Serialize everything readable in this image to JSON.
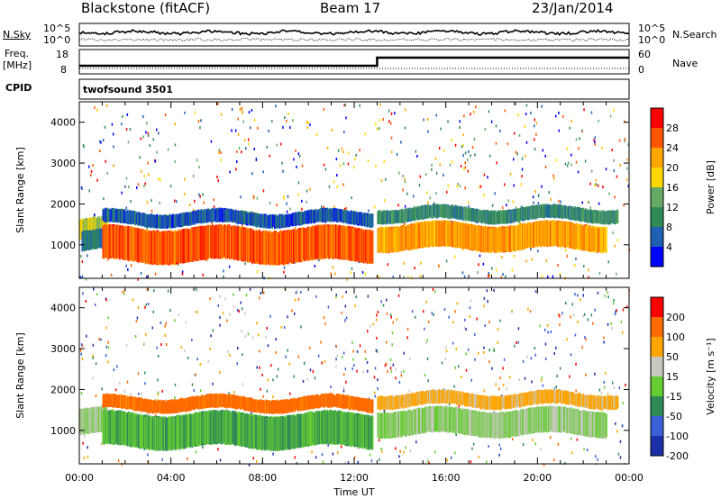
{
  "header": {
    "station": "Blackstone (fitACF)",
    "beam": "Beam 17",
    "date": "23/Jan/2014"
  },
  "noise_panel": {
    "left_label": "N.Sky",
    "right_label": "N.Search",
    "left_ticks": [
      "10^5",
      "10^0"
    ],
    "right_ticks": [
      "10^5",
      "10^0"
    ]
  },
  "freq_panel": {
    "left_label_top": "Freq.",
    "left_label_bottom": "[MHz]",
    "right_label": "Nave",
    "left_ticks": [
      "18",
      "8"
    ],
    "right_ticks": [
      "60",
      "0"
    ],
    "freq_step_time_hour": 13.0
  },
  "cpid": {
    "label": "CPID",
    "program": "twofsound 3501"
  },
  "colors": {
    "power_scale": [
      "#0000ff",
      "#1f5fb4",
      "#2e8b57",
      "#66aa66",
      "#ffd700",
      "#ffa500",
      "#ff5500",
      "#ff0000"
    ],
    "velocity_scale": [
      "#1a2fa8",
      "#3b5fd6",
      "#2e8b57",
      "#66cc33",
      "#c8c8c0",
      "#ffa500",
      "#ff6a00",
      "#ff0000"
    ]
  },
  "chart_data": [
    {
      "type": "heatmap",
      "name": "power",
      "ylabel": "Slant Range [km]",
      "ylim": [
        180,
        4500
      ],
      "yticks": [
        "4000",
        "3000",
        "2000",
        "1000"
      ],
      "xlim_hours": [
        0,
        24
      ],
      "colorbar": {
        "label": "Power [dB]",
        "ticks": [
          "28",
          "24",
          "20",
          "16",
          "12",
          "8",
          "4"
        ],
        "range": [
          0,
          32
        ]
      },
      "bands": [
        {
          "t0": 0.0,
          "t1": 1.2,
          "r0": 1150,
          "r1": 1600,
          "level": 16
        },
        {
          "t0": 0.1,
          "t1": 1.1,
          "r0": 850,
          "r1": 1300,
          "level": 8
        },
        {
          "t0": 1.0,
          "t1": 12.8,
          "r0": 600,
          "r1": 1400,
          "level": 26
        },
        {
          "t0": 1.0,
          "t1": 12.8,
          "r0": 1500,
          "r1": 1800,
          "level": 6
        },
        {
          "t0": 13.0,
          "t1": 23.0,
          "r0": 900,
          "r1": 1500,
          "level": 22
        },
        {
          "t0": 13.0,
          "t1": 23.5,
          "r0": 1600,
          "r1": 1900,
          "level": 10
        }
      ]
    },
    {
      "type": "heatmap",
      "name": "velocity",
      "ylabel": "Slant Range [km]",
      "ylim": [
        180,
        4500
      ],
      "yticks": [
        "4000",
        "3000",
        "2000",
        "1000"
      ],
      "xlim_hours": [
        0,
        24
      ],
      "xticks": [
        "00:00",
        "04:00",
        "08:00",
        "12:00",
        "16:00",
        "20:00",
        "00:00"
      ],
      "xlabel": "Time UT",
      "colorbar": {
        "label": "Velocity [m s⁻¹]",
        "ticks": [
          "200",
          "100",
          "50",
          "15",
          "-15",
          "-50",
          "-100",
          "-200"
        ],
        "range": [
          -250,
          250
        ]
      },
      "bands": [
        {
          "t0": 0.0,
          "t1": 1.2,
          "r0": 900,
          "r1": 1500,
          "level": 0
        },
        {
          "t0": 1.0,
          "t1": 12.8,
          "r0": 600,
          "r1": 1400,
          "level": -60
        },
        {
          "t0": 1.0,
          "t1": 12.8,
          "r0": 1500,
          "r1": 1800,
          "level": 150
        },
        {
          "t0": 13.0,
          "t1": 23.0,
          "r0": 900,
          "r1": 1500,
          "level": 0
        },
        {
          "t0": 13.0,
          "t1": 23.5,
          "r0": 1600,
          "r1": 1900,
          "level": 80
        }
      ]
    }
  ]
}
